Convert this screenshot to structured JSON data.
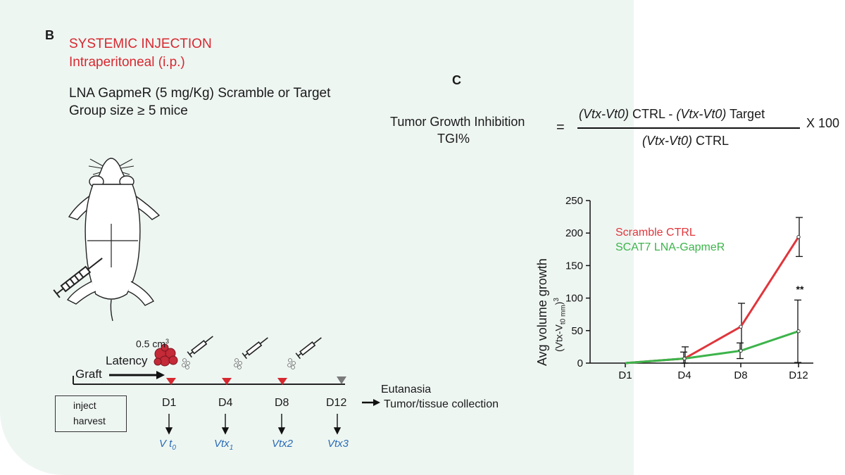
{
  "panel_b": {
    "letter": "B",
    "title": "SYSTEMIC INJECTION",
    "subtitle": "Intraperitoneal (i.p.)",
    "line1": "LNA GapmeR (5 mg/Kg) Scramble or Target",
    "line2_prefix": "Group size ",
    "line2_symbol": "≥",
    "line2_suffix": " 5 mice",
    "tumor_size": "0.5 cm",
    "tumor_size_sup": "3",
    "latency": "Latency",
    "graft": "Graft",
    "eutanasia": "Eutanasia",
    "collection": "Tumor/tissue collection",
    "legend": {
      "inject": "inject",
      "harvest": "harvest"
    },
    "days": [
      "D1",
      "D4",
      "D8",
      "D12"
    ],
    "volumes": [
      {
        "main": "V t",
        "sub": "0"
      },
      {
        "main": "Vtx",
        "sub": "1"
      },
      {
        "main": "Vtx2",
        "sub": ""
      },
      {
        "main": "Vtx3",
        "sub": ""
      }
    ],
    "colors": {
      "inject": "#d7282f",
      "harvest": "#7a7a7a",
      "volume": "#2a6bb5"
    }
  },
  "panel_c": {
    "letter": "C",
    "tgi_line1": "Tumor Growth Inhibition",
    "tgi_line2": "TGI%",
    "equals": "=",
    "num_1": "(Vtx-Vt0)",
    "num_2": " CTRL - ",
    "num_3": "(Vtx-Vt0)",
    "num_4": " Target",
    "den_1": "(Vtx-Vt0)",
    "den_2": " CTRL",
    "times": "X 100"
  },
  "chart_data": {
    "type": "line",
    "categories": [
      "D1",
      "D4",
      "D8",
      "D12"
    ],
    "ylim": [
      0,
      250
    ],
    "yticks": [
      "0",
      "50",
      "100",
      "150",
      "200",
      "250"
    ],
    "ylabel": "Avg volume growth",
    "ylabel2": "(Vtx-V",
    "ylabel2_sub": "t0 mm",
    "ylabel2_end": ")",
    "ylabel2_sup": "3",
    "annotation": "**",
    "series": [
      {
        "name": "Scramble CTRL",
        "color": "#e0353b",
        "values": [
          0,
          7,
          56,
          194
        ],
        "err": [
          0,
          18,
          36,
          30
        ]
      },
      {
        "name": "SCAT7 LNA-GapmeR",
        "color": "#3cb44b",
        "values": [
          0,
          7,
          19,
          49
        ],
        "err": [
          0,
          10,
          12,
          48
        ]
      }
    ]
  }
}
